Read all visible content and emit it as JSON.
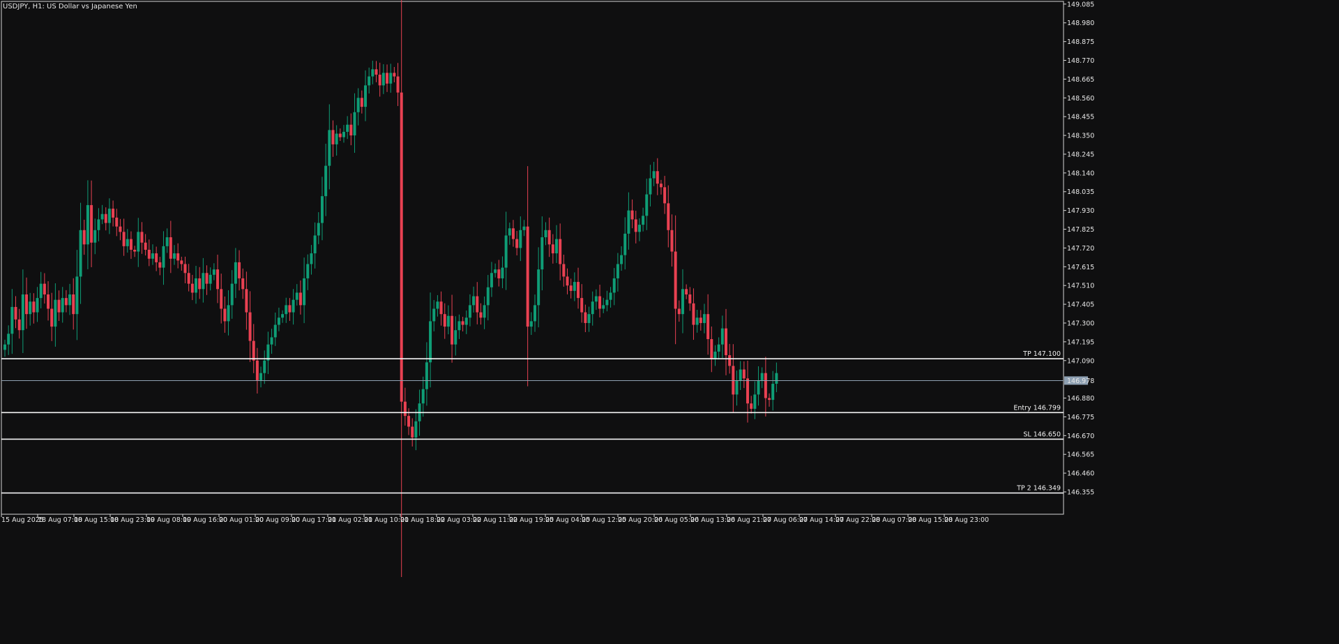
{
  "window": {
    "title": "USDJPY, H1:  US Dollar vs Japanese Yen"
  },
  "colors": {
    "background": "#0f0f10",
    "frame": "#d6d6d6",
    "text": "#e8e8e8",
    "bull": "#0f9d76",
    "bear": "#e94152",
    "level_line": "#f5f5f5",
    "bid_line": "#8fa1b3",
    "bid_tag_bg": "#8fa1b3",
    "bid_tag_text": "#ffffff"
  },
  "chart_data": {
    "type": "candlestick",
    "symbol": "USDJPY",
    "timeframe": "H1",
    "title": "USDJPY, H1:  US Dollar vs Japanese Yen",
    "ylim": [
      146.23,
      149.1
    ],
    "y_ticks": [
      "149.085",
      "148.980",
      "148.875",
      "148.770",
      "148.665",
      "148.560",
      "148.455",
      "148.350",
      "148.245",
      "148.140",
      "148.035",
      "147.930",
      "147.825",
      "147.720",
      "147.615",
      "147.510",
      "147.405",
      "147.300",
      "147.195",
      "147.090",
      "146.880",
      "146.775",
      "146.670",
      "146.565",
      "146.460",
      "146.355"
    ],
    "x_ticks": [
      "15 Aug 2025",
      "18 Aug 07:00",
      "18 Aug 15:00",
      "18 Aug 23:00",
      "19 Aug 08:00",
      "19 Aug 16:00",
      "20 Aug 01:00",
      "20 Aug 09:00",
      "20 Aug 17:00",
      "21 Aug 02:00",
      "21 Aug 10:00",
      "21 Aug 18:00",
      "22 Aug 03:00",
      "22 Aug 11:00",
      "22 Aug 19:00",
      "25 Aug 04:00",
      "25 Aug 12:00",
      "25 Aug 20:00",
      "26 Aug 05:00",
      "26 Aug 13:00",
      "26 Aug 21:00",
      "27 Aug 06:00",
      "27 Aug 14:00",
      "27 Aug 22:00",
      "28 Aug 07:00",
      "28 Aug 15:00",
      "28 Aug 23:00"
    ],
    "bid": {
      "value": 146.978,
      "label": "146.978"
    },
    "levels": [
      {
        "name": "TP",
        "value": 147.1,
        "label": "TP 147.100"
      },
      {
        "name": "Entry",
        "value": 146.799,
        "label": "Entry 146.799"
      },
      {
        "name": "SL",
        "value": 146.65,
        "label": "SL 146.650"
      },
      {
        "name": "TP 2",
        "value": 146.349,
        "label": "TP 2 146.349"
      }
    ],
    "close_path": [
      147.18,
      147.24,
      147.39,
      147.32,
      147.26,
      147.46,
      147.35,
      147.42,
      147.36,
      147.44,
      147.52,
      147.46,
      147.38,
      147.28,
      147.43,
      147.36,
      147.44,
      147.4,
      147.46,
      147.35,
      147.56,
      147.82,
      147.74,
      147.96,
      147.75,
      147.82,
      147.88,
      147.91,
      147.86,
      147.94,
      147.89,
      147.84,
      147.81,
      147.73,
      147.77,
      147.71,
      147.7,
      147.81,
      147.75,
      147.71,
      147.66,
      147.69,
      147.64,
      147.61,
      147.73,
      147.78,
      147.66,
      147.69,
      147.65,
      147.63,
      147.58,
      147.52,
      147.47,
      147.55,
      147.49,
      147.58,
      147.52,
      147.57,
      147.6,
      147.49,
      147.38,
      147.31,
      147.4,
      147.52,
      147.64,
      147.55,
      147.49,
      147.36,
      147.2,
      147.09,
      146.98,
      147.02,
      147.09,
      147.18,
      147.22,
      147.29,
      147.33,
      147.35,
      147.4,
      147.36,
      147.43,
      147.47,
      147.4,
      147.55,
      147.63,
      147.69,
      147.79,
      147.86,
      148.01,
      148.18,
      148.38,
      148.3,
      148.36,
      148.34,
      148.37,
      148.41,
      148.35,
      148.48,
      148.56,
      148.51,
      148.63,
      148.68,
      148.72,
      148.69,
      148.63,
      148.7,
      148.64,
      148.7,
      148.68,
      148.59,
      146.86,
      146.78,
      146.72,
      146.66,
      146.75,
      146.85,
      146.93,
      147.08,
      147.31,
      147.38,
      147.42,
      147.35,
      147.28,
      147.34,
      147.18,
      147.26,
      147.31,
      147.29,
      147.33,
      147.4,
      147.45,
      147.36,
      147.33,
      147.4,
      147.5,
      147.58,
      147.6,
      147.55,
      147.61,
      147.79,
      147.83,
      147.77,
      147.72,
      147.82,
      147.84,
      147.28,
      147.31,
      147.4,
      147.6,
      147.78,
      147.82,
      147.74,
      147.69,
      147.77,
      147.63,
      147.56,
      147.51,
      147.48,
      147.53,
      147.44,
      147.36,
      147.3,
      147.35,
      147.42,
      147.45,
      147.38,
      147.4,
      147.43,
      147.47,
      147.55,
      147.63,
      147.68,
      147.8,
      147.93,
      147.88,
      147.81,
      147.85,
      147.9,
      148.02,
      148.11,
      148.15,
      148.08,
      148.06,
      147.97,
      147.82,
      147.7,
      147.38,
      147.35,
      147.49,
      147.46,
      147.41,
      147.29,
      147.33,
      147.3,
      147.35,
      147.21,
      147.1,
      147.14,
      147.18,
      147.27,
      147.12,
      147.06,
      146.9,
      146.98,
      147.04,
      146.99,
      146.85,
      146.82,
      146.9,
      146.98,
      147.02,
      146.88,
      146.87,
      146.96,
      147.02
    ]
  }
}
